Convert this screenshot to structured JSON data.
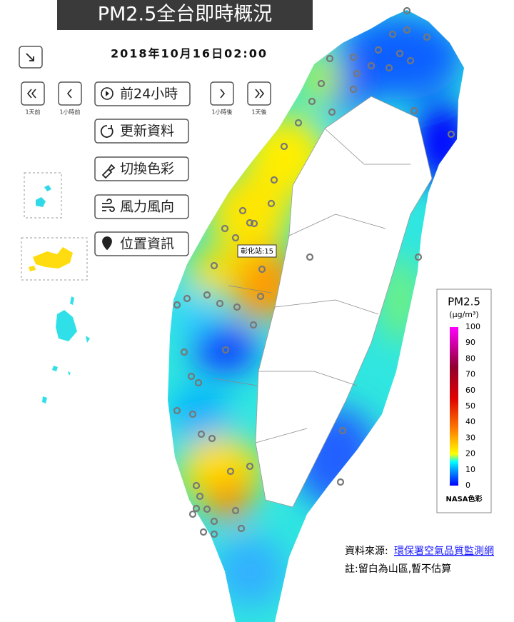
{
  "header": {
    "title": "PM2.5全台即時概況",
    "datetime": "2018年10月16日02:00"
  },
  "nav": {
    "day_back": "1天前",
    "hour_back": "1小時前",
    "play": "前24小時",
    "hour_forward": "1小時後",
    "day_forward": "1天後"
  },
  "menu": [
    "更新資料",
    "切換色彩",
    "風力風向",
    "位置資訊"
  ],
  "map": {
    "station_tooltip": "彰化站:15"
  },
  "legend": {
    "title": "PM2.5",
    "unit": "(μg/m³)",
    "ticks": [
      100,
      90,
      80,
      70,
      60,
      50,
      40,
      30,
      20,
      10,
      0
    ],
    "scheme": "NASA色彩"
  },
  "footer": {
    "source_label": "資料來源:",
    "source_link": "環保署空氣品質監測網",
    "note": "註:留白為山區,暫不估算"
  }
}
